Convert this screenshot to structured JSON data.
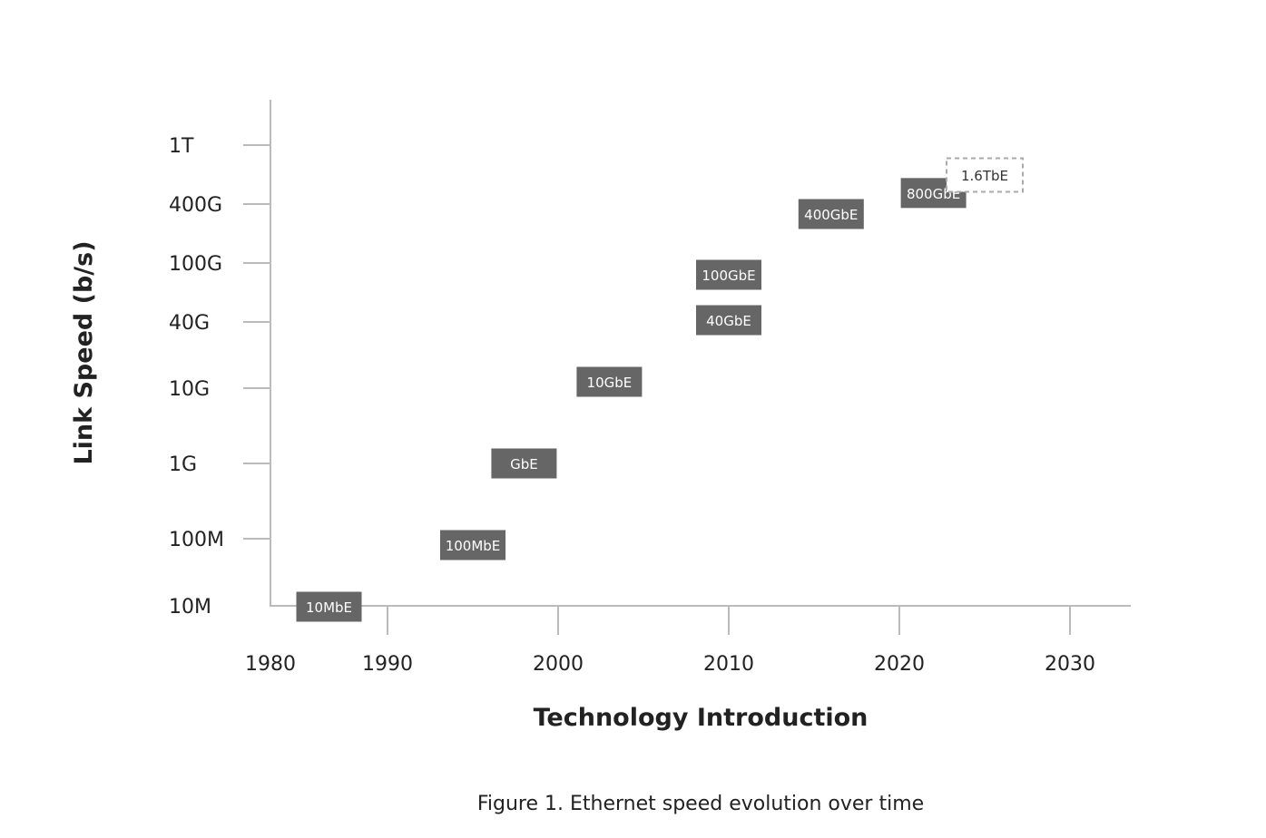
{
  "chart_data": {
    "type": "scatter",
    "title": "",
    "caption": "Figure 1. Ethernet speed evolution over time",
    "xlabel": "Technology  Introduction",
    "ylabel": "Link Speed (b/s)",
    "x_ticks": [
      1980,
      1990,
      2000,
      2010,
      2020,
      2030
    ],
    "y_scale": "log",
    "y_ticks": [
      {
        "label": "10M",
        "value": 10000000.0
      },
      {
        "label": "100M",
        "value": 100000000.0
      },
      {
        "label": "1G",
        "value": 1000000000.0
      },
      {
        "label": "10G",
        "value": 10000000000.0
      },
      {
        "label": "40G",
        "value": 40000000000.0
      },
      {
        "label": "100G",
        "value": 100000000000.0
      },
      {
        "label": "400G",
        "value": 400000000000.0
      },
      {
        "label": "1T",
        "value": 1000000000000.0
      }
    ],
    "grid": false,
    "points": [
      {
        "label": "10MbE",
        "year": 1985,
        "speed": 10000000.0,
        "style": "solid"
      },
      {
        "label": "100MbE",
        "year": 1995,
        "speed": 100000000.0,
        "style": "solid"
      },
      {
        "label": "GbE",
        "year": 1998,
        "speed": 1000000000.0,
        "style": "solid"
      },
      {
        "label": "10GbE",
        "year": 2003,
        "speed": 10000000000.0,
        "style": "solid"
      },
      {
        "label": "40GbE",
        "year": 2010,
        "speed": 40000000000.0,
        "style": "solid"
      },
      {
        "label": "100GbE",
        "year": 2010,
        "speed": 100000000000.0,
        "style": "solid"
      },
      {
        "label": "400GbE",
        "year": 2016,
        "speed": 400000000000.0,
        "style": "solid"
      },
      {
        "label": "800GbE",
        "year": 2022,
        "speed": 800000000000.0,
        "style": "solid"
      },
      {
        "label": "1.6TbE",
        "year": 2025,
        "speed": 1600000000000.0,
        "style": "dashed"
      }
    ],
    "colors": {
      "box": "#666666",
      "axis": "#bbbbbb",
      "dashed_border": "#aaaaaa"
    }
  }
}
